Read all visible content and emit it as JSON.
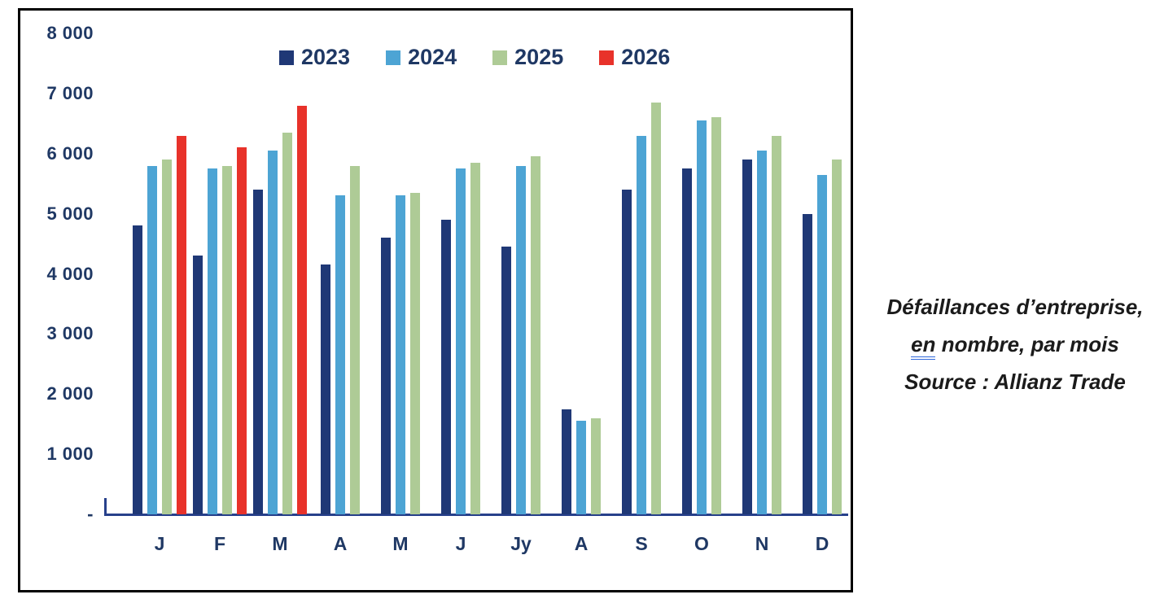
{
  "chart_data": {
    "type": "bar",
    "title": "",
    "xlabel": "",
    "ylabel": "",
    "categories": [
      "J",
      "F",
      "M",
      "A",
      "M",
      "J",
      "Jy",
      "A",
      "S",
      "O",
      "N",
      "D"
    ],
    "series": [
      {
        "name": "2023",
        "color": "#1f3876",
        "values": [
          4800,
          4300,
          5400,
          4150,
          4600,
          4900,
          4450,
          1750,
          5400,
          5750,
          5900,
          5000
        ]
      },
      {
        "name": "2024",
        "color": "#4da4d4",
        "values": [
          5800,
          5750,
          6050,
          5300,
          5300,
          5750,
          5800,
          1550,
          6300,
          6550,
          6050,
          5650
        ]
      },
      {
        "name": "2025",
        "color": "#aecb96",
        "values": [
          5900,
          5800,
          6350,
          5800,
          5350,
          5850,
          5950,
          1600,
          6850,
          6600,
          6300,
          5900
        ]
      },
      {
        "name": "2026",
        "color": "#e8322a",
        "values": [
          6300,
          6100,
          6800,
          null,
          null,
          null,
          null,
          null,
          null,
          null,
          null,
          null
        ]
      }
    ],
    "ylim": [
      0,
      8000
    ],
    "yticks": [
      {
        "value": 8000,
        "label": "8 000"
      },
      {
        "value": 7000,
        "label": "7 000"
      },
      {
        "value": 6000,
        "label": "6 000"
      },
      {
        "value": 5000,
        "label": "5 000"
      },
      {
        "value": 4000,
        "label": "4 000"
      },
      {
        "value": 3000,
        "label": "3 000"
      },
      {
        "value": 2000,
        "label": "2 000"
      },
      {
        "value": 1000,
        "label": "1 000"
      },
      {
        "value": 0,
        "label": "-"
      }
    ],
    "legend_position": "top",
    "grid": false
  },
  "caption": {
    "line1": "Défaillances d’entreprise,",
    "line2_underlined": "en",
    "line2_rest": " nombre, par mois",
    "line3": "Source : Allianz Trade"
  },
  "colors": {
    "axis_text": "#1f3864",
    "axis_line": "#27408b",
    "frame_border": "#000000",
    "caption_text": "#1b1b1b",
    "underline_blue": "#2e66d9"
  }
}
